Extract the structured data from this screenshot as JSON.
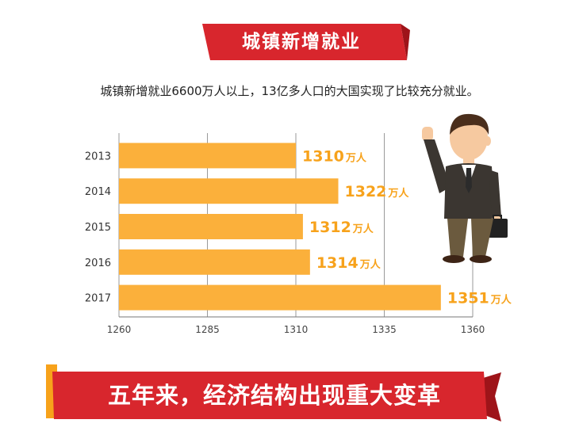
{
  "header": {
    "title": "城镇新增就业",
    "subtitle": "城镇新增就业6600万人以上，13亿多人口的大国实现了比较充分就业。"
  },
  "footer": {
    "banner_text": "五年来，经济结构出现重大变革"
  },
  "colors": {
    "accent_red": "#d8262d",
    "bar_orange": "#fbb03b",
    "label_orange": "#f7a21b"
  },
  "chart_data": {
    "type": "bar",
    "orientation": "horizontal",
    "categories": [
      "2013",
      "2014",
      "2015",
      "2016",
      "2017"
    ],
    "values": [
      1310,
      1322,
      1312,
      1314,
      1351
    ],
    "labels": [
      "1310",
      "1322",
      "1312",
      "1314",
      "1351"
    ],
    "unit": "万人",
    "xlim": [
      1260,
      1360
    ],
    "xticks": [
      "1260",
      "1285",
      "1310",
      "1335",
      "1360"
    ],
    "grid": true
  }
}
